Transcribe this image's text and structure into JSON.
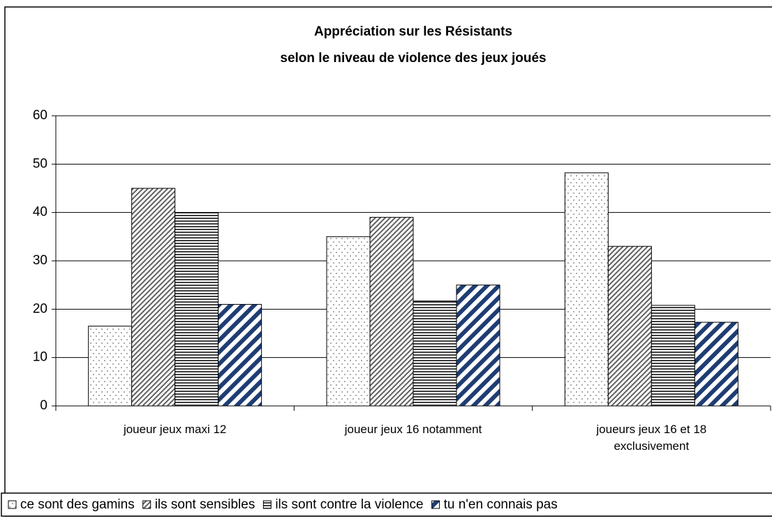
{
  "chart_data": {
    "type": "bar",
    "title": [
      "Appréciation sur les  Résistants",
      "selon le niveau de violence des jeux joués"
    ],
    "categories": [
      "joueur jeux maxi 12",
      "joueur jeux 16 notamment",
      "joueurs jeux 16 et 18 exclusivement"
    ],
    "series": [
      {
        "name": "ce sont des gamins",
        "color": "#707070",
        "values": [
          16.5,
          35,
          48.2
        ]
      },
      {
        "name": "ils sont sensibles",
        "color": "#606060",
        "values": [
          45,
          39,
          33
        ]
      },
      {
        "name": "ils sont contre la violence",
        "color": "#404040",
        "values": [
          40,
          21.7,
          20.8
        ]
      },
      {
        "name": "tu n'en connais pas",
        "color": "#1f3d73",
        "values": [
          21,
          25,
          17.3
        ]
      }
    ],
    "ylim": [
      0,
      60
    ],
    "yticks": [
      0,
      10,
      20,
      30,
      40,
      50,
      60
    ],
    "grid": true,
    "legend": "bottom"
  }
}
